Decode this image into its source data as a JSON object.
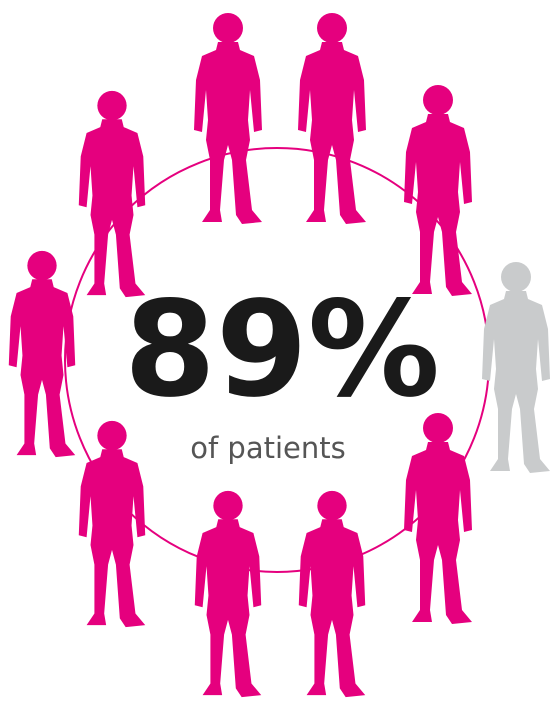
{
  "headline": "89%",
  "caption": "of patients"
}
